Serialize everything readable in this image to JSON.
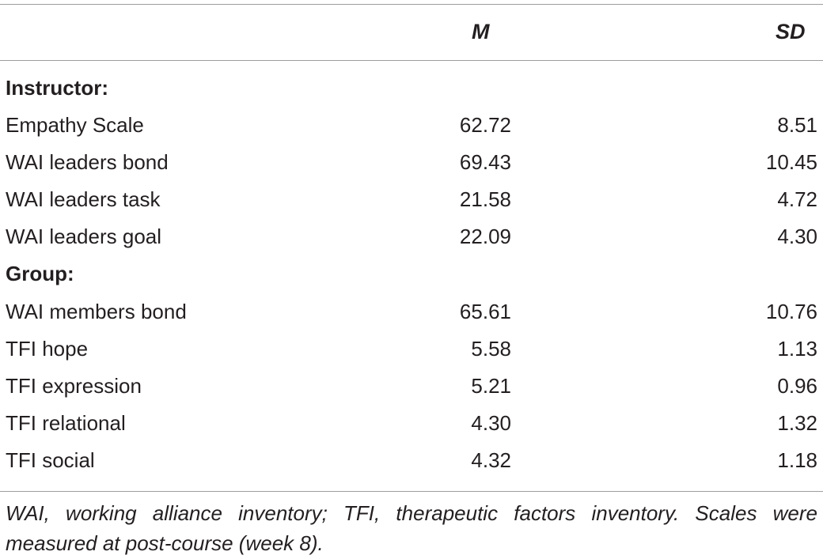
{
  "columns": {
    "m": "M",
    "sd": "SD"
  },
  "rows": [
    {
      "label": "Instructor:",
      "section": true
    },
    {
      "label": "Empathy Scale",
      "m": "62.72",
      "sd": "8.51"
    },
    {
      "label": "WAI leaders bond",
      "m": "69.43",
      "sd": "10.45"
    },
    {
      "label": "WAI leaders task",
      "m": "21.58",
      "sd": "4.72"
    },
    {
      "label": "WAI leaders goal",
      "m": "22.09",
      "sd": "4.30"
    },
    {
      "label": "Group:",
      "section": true
    },
    {
      "label": "WAI members bond",
      "m": "65.61",
      "sd": "10.76"
    },
    {
      "label": "TFI hope",
      "m": "5.58",
      "sd": "1.13"
    },
    {
      "label": "TFI expression",
      "m": "5.21",
      "sd": "0.96"
    },
    {
      "label": "TFI relational",
      "m": "4.30",
      "sd": "1.32"
    },
    {
      "label": "TFI social",
      "m": "4.32",
      "sd": "1.18"
    }
  ],
  "footnote": "WAI, working alliance inventory; TFI, therapeutic factors inventory. Scales were measured at post-course (week 8)."
}
